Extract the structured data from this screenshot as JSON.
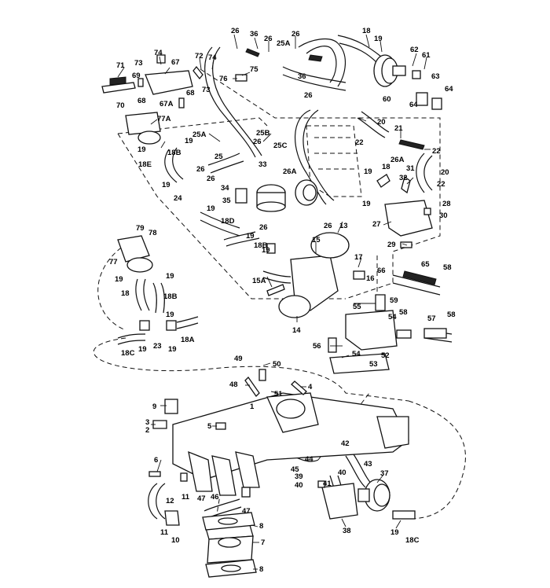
{
  "callouts": [
    {
      "id": "c1",
      "text": "1"
    },
    {
      "id": "c2",
      "text": "2"
    },
    {
      "id": "c3",
      "text": "3"
    },
    {
      "id": "c4",
      "text": "4"
    },
    {
      "id": "c5",
      "text": "5"
    },
    {
      "id": "c6",
      "text": "6"
    },
    {
      "id": "c7",
      "text": "7"
    },
    {
      "id": "c8a",
      "text": "8"
    },
    {
      "id": "c8b",
      "text": "8"
    },
    {
      "id": "c8c",
      "text": "8"
    },
    {
      "id": "c9",
      "text": "9"
    },
    {
      "id": "c10",
      "text": "10"
    },
    {
      "id": "c11a",
      "text": "11"
    },
    {
      "id": "c11b",
      "text": "11"
    },
    {
      "id": "c12",
      "text": "12"
    },
    {
      "id": "c13",
      "text": "13"
    },
    {
      "id": "c14",
      "text": "14"
    },
    {
      "id": "c15",
      "text": "15"
    },
    {
      "id": "c15A",
      "text": "15A"
    },
    {
      "id": "c16",
      "text": "16"
    },
    {
      "id": "c17",
      "text": "17"
    },
    {
      "id": "c18a",
      "text": "18"
    },
    {
      "id": "c18b",
      "text": "18"
    },
    {
      "id": "c18c",
      "text": "18"
    },
    {
      "id": "c18A",
      "text": "18A"
    },
    {
      "id": "c18B",
      "text": "18B"
    },
    {
      "id": "c18B2",
      "text": "18B"
    },
    {
      "id": "c18B3",
      "text": "18B"
    },
    {
      "id": "c18C",
      "text": "18C"
    },
    {
      "id": "c18C2",
      "text": "18C"
    },
    {
      "id": "c18D",
      "text": "18D"
    },
    {
      "id": "c18E",
      "text": "18E"
    },
    {
      "id": "c19a",
      "text": "19"
    },
    {
      "id": "c19b",
      "text": "19"
    },
    {
      "id": "c19c",
      "text": "19"
    },
    {
      "id": "c19d",
      "text": "19"
    },
    {
      "id": "c19e",
      "text": "19"
    },
    {
      "id": "c19f",
      "text": "19"
    },
    {
      "id": "c19g",
      "text": "19"
    },
    {
      "id": "c19h",
      "text": "19"
    },
    {
      "id": "c19i",
      "text": "19"
    },
    {
      "id": "c19j",
      "text": "19"
    },
    {
      "id": "c19k",
      "text": "19"
    },
    {
      "id": "c19l",
      "text": "19"
    },
    {
      "id": "c19m",
      "text": "19"
    },
    {
      "id": "c19n",
      "text": "19"
    },
    {
      "id": "c19o",
      "text": "19"
    },
    {
      "id": "c20a",
      "text": "20"
    },
    {
      "id": "c20b",
      "text": "20"
    },
    {
      "id": "c21",
      "text": "21"
    },
    {
      "id": "c22a",
      "text": "22"
    },
    {
      "id": "c22b",
      "text": "22"
    },
    {
      "id": "c22c",
      "text": "22"
    },
    {
      "id": "c23",
      "text": "23"
    },
    {
      "id": "c24",
      "text": "24"
    },
    {
      "id": "c25",
      "text": "25"
    },
    {
      "id": "c25A",
      "text": "25A"
    },
    {
      "id": "c25A2",
      "text": "25A"
    },
    {
      "id": "c25B",
      "text": "25B"
    },
    {
      "id": "c25C",
      "text": "25C"
    },
    {
      "id": "c26a",
      "text": "26"
    },
    {
      "id": "c26b",
      "text": "26"
    },
    {
      "id": "c26c",
      "text": "26"
    },
    {
      "id": "c26d",
      "text": "26"
    },
    {
      "id": "c26e",
      "text": "26"
    },
    {
      "id": "c26f",
      "text": "26"
    },
    {
      "id": "c26g",
      "text": "26"
    },
    {
      "id": "c26h",
      "text": "26"
    },
    {
      "id": "c26i",
      "text": "26"
    },
    {
      "id": "c26A",
      "text": "26A"
    },
    {
      "id": "c26A2",
      "text": "26A"
    },
    {
      "id": "c27",
      "text": "27"
    },
    {
      "id": "c28",
      "text": "28"
    },
    {
      "id": "c29",
      "text": "29"
    },
    {
      "id": "c30",
      "text": "30"
    },
    {
      "id": "c31",
      "text": "31"
    },
    {
      "id": "c32",
      "text": "32"
    },
    {
      "id": "c33",
      "text": "33"
    },
    {
      "id": "c34",
      "text": "34"
    },
    {
      "id": "c35",
      "text": "35"
    },
    {
      "id": "c36a",
      "text": "36"
    },
    {
      "id": "c36b",
      "text": "36"
    },
    {
      "id": "c37",
      "text": "37"
    },
    {
      "id": "c38",
      "text": "38"
    },
    {
      "id": "c39",
      "text": "39"
    },
    {
      "id": "c40a",
      "text": "40"
    },
    {
      "id": "c40b",
      "text": "40"
    },
    {
      "id": "c41",
      "text": "41"
    },
    {
      "id": "c42",
      "text": "42"
    },
    {
      "id": "c43",
      "text": "43"
    },
    {
      "id": "c44",
      "text": "44"
    },
    {
      "id": "c45",
      "text": "45"
    },
    {
      "id": "c46",
      "text": "46"
    },
    {
      "id": "c47a",
      "text": "47"
    },
    {
      "id": "c47b",
      "text": "47"
    },
    {
      "id": "c48",
      "text": "48"
    },
    {
      "id": "c49",
      "text": "49"
    },
    {
      "id": "c50",
      "text": "50"
    },
    {
      "id": "c51",
      "text": "51"
    },
    {
      "id": "c52",
      "text": "52"
    },
    {
      "id": "c53",
      "text": "53"
    },
    {
      "id": "c54a",
      "text": "54"
    },
    {
      "id": "c54b",
      "text": "54"
    },
    {
      "id": "c55",
      "text": "55"
    },
    {
      "id": "c56",
      "text": "56"
    },
    {
      "id": "c57",
      "text": "57"
    },
    {
      "id": "c58a",
      "text": "58"
    },
    {
      "id": "c58b",
      "text": "58"
    },
    {
      "id": "c58c",
      "text": "58"
    },
    {
      "id": "c59",
      "text": "59"
    },
    {
      "id": "c60",
      "text": "60"
    },
    {
      "id": "c61",
      "text": "61"
    },
    {
      "id": "c62",
      "text": "62"
    },
    {
      "id": "c63",
      "text": "63"
    },
    {
      "id": "c64a",
      "text": "64"
    },
    {
      "id": "c64b",
      "text": "64"
    },
    {
      "id": "c65",
      "text": "65"
    },
    {
      "id": "c66",
      "text": "66"
    },
    {
      "id": "c67",
      "text": "67"
    },
    {
      "id": "c67A",
      "text": "67A"
    },
    {
      "id": "c68a",
      "text": "68"
    },
    {
      "id": "c68b",
      "text": "68"
    },
    {
      "id": "c69",
      "text": "69"
    },
    {
      "id": "c70",
      "text": "70"
    },
    {
      "id": "c71",
      "text": "71"
    },
    {
      "id": "c72",
      "text": "72"
    },
    {
      "id": "c73a",
      "text": "73"
    },
    {
      "id": "c73b",
      "text": "73"
    },
    {
      "id": "c74a",
      "text": "74"
    },
    {
      "id": "c74b",
      "text": "74"
    },
    {
      "id": "c75",
      "text": "75"
    },
    {
      "id": "c76",
      "text": "76"
    },
    {
      "id": "c77",
      "text": "77"
    },
    {
      "id": "c77A",
      "text": "77A"
    },
    {
      "id": "c78",
      "text": "78"
    },
    {
      "id": "c79",
      "text": "79"
    }
  ]
}
